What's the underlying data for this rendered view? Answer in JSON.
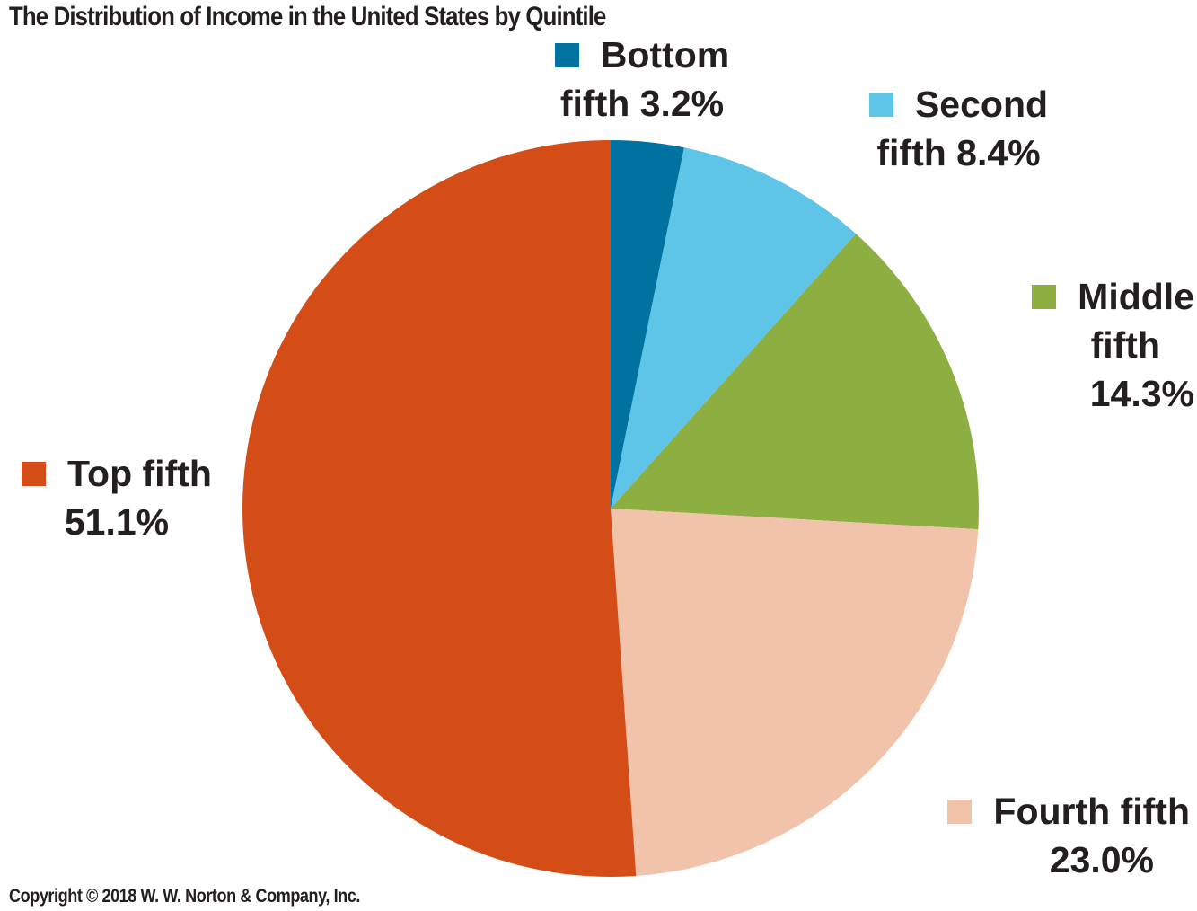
{
  "title": "The Distribution of Income in the United States by Quintile",
  "copyright": "Copyright © 2018 W. W. Norton & Company, Inc.",
  "chart_data": {
    "type": "pie",
    "title": "The Distribution of Income in the United States by Quintile",
    "slices": [
      {
        "name": "Bottom fifth",
        "value": 3.2,
        "label_lines": [
          "Bottom",
          "fifth 3.2%"
        ],
        "color": "#0072a0"
      },
      {
        "name": "Second fifth",
        "value": 8.4,
        "label_lines": [
          "Second",
          "fifth 8.4%"
        ],
        "color": "#5ec5e8"
      },
      {
        "name": "Middle fifth",
        "value": 14.3,
        "label_lines": [
          "Middle",
          "fifth",
          "14.3%"
        ],
        "color": "#8daf41"
      },
      {
        "name": "Fourth fifth",
        "value": 23.0,
        "label_lines": [
          "Fourth fifth",
          "23.0%"
        ],
        "color": "#f1c3aa"
      },
      {
        "name": "Top fifth",
        "value": 51.1,
        "label_lines": [
          "Top fifth",
          "51.1%"
        ],
        "color": "#d44d16"
      }
    ]
  }
}
